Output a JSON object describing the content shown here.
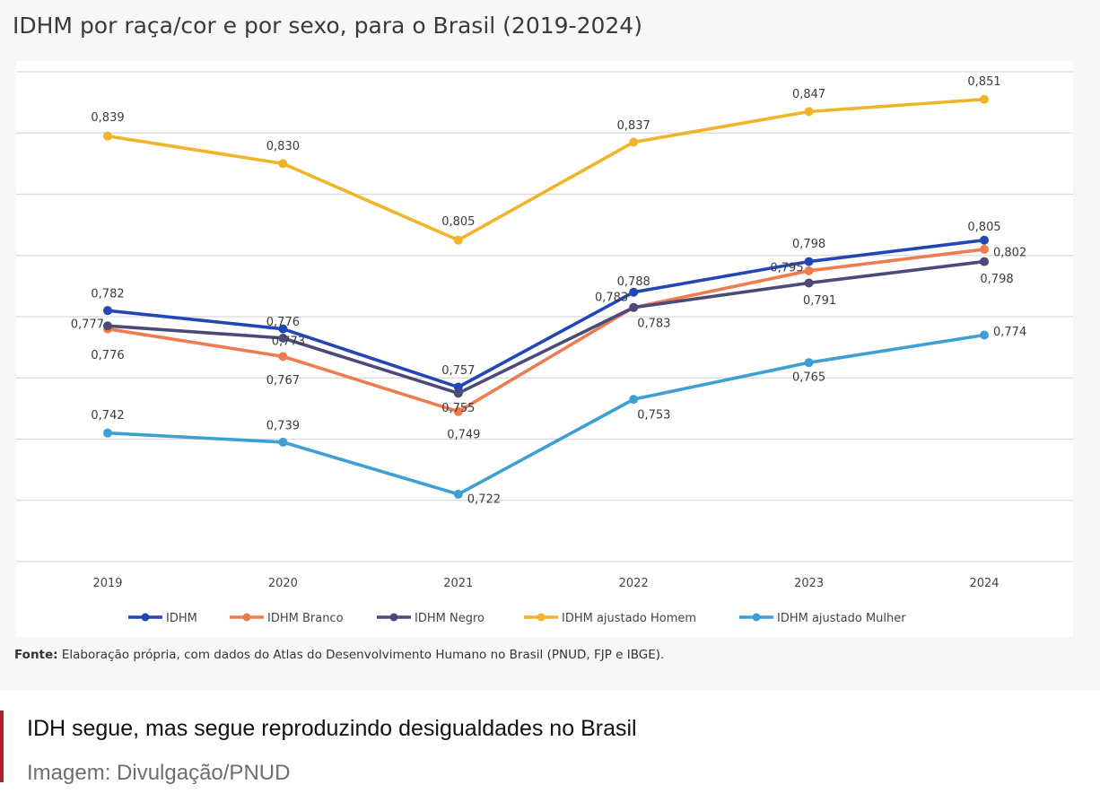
{
  "chart_data": {
    "type": "line",
    "title": "IDHM por raça/cor e por sexo, para o Brasil (2019-2024)",
    "xlabel": "",
    "ylabel": "",
    "categories": [
      "2019",
      "2020",
      "2021",
      "2022",
      "2023",
      "2024"
    ],
    "ylim": [
      0.7,
      0.86
    ],
    "grid": true,
    "legend_position": "bottom",
    "series": [
      {
        "name": "IDHM",
        "color": "#2346b5",
        "values": [
          0.782,
          0.776,
          0.757,
          0.788,
          0.798,
          0.805
        ],
        "labels": [
          "0,782",
          "0,776",
          "0,757",
          "0,788",
          "0,798",
          "0,805"
        ]
      },
      {
        "name": "IDHM Branco",
        "color": "#ed7d4f",
        "values": [
          0.776,
          0.767,
          0.749,
          0.783,
          0.795,
          0.802
        ],
        "labels": [
          "0,776",
          "0,767",
          "0,749",
          "0,783",
          "0,795",
          "0,802"
        ]
      },
      {
        "name": "IDHM Negro",
        "color": "#4b4a78",
        "values": [
          0.777,
          0.773,
          0.755,
          0.783,
          0.791,
          0.798
        ],
        "labels": [
          "0,777",
          "0,773",
          "0,755",
          "0,783",
          "0,791",
          "0,798"
        ]
      },
      {
        "name": "IDHM ajustado Homem",
        "color": "#f0b429",
        "values": [
          0.839,
          0.83,
          0.805,
          0.837,
          0.847,
          0.851
        ],
        "labels": [
          "0,839",
          "0,830",
          "0,805",
          "0,837",
          "0,847",
          "0,851"
        ]
      },
      {
        "name": "IDHM ajustado Mulher",
        "color": "#3d9fd2",
        "values": [
          0.742,
          0.739,
          0.722,
          0.753,
          0.765,
          0.774
        ],
        "labels": [
          "0,742",
          "0,739",
          "0,722",
          "0,753",
          "0,765",
          "0,774"
        ]
      }
    ]
  },
  "source": {
    "label": "Fonte:",
    "text": "Elaboração própria, com dados do Atlas do Desenvolvimento Humano no Brasil (PNUD, FJP e IBGE)."
  },
  "caption": {
    "text": "IDH segue, mas segue reproduzindo desigualdades no Brasil",
    "credit": "Imagem: Divulgação/PNUD"
  },
  "colors": {
    "gridline": "#d9d9d9",
    "caption_accent": "#b0202f"
  }
}
